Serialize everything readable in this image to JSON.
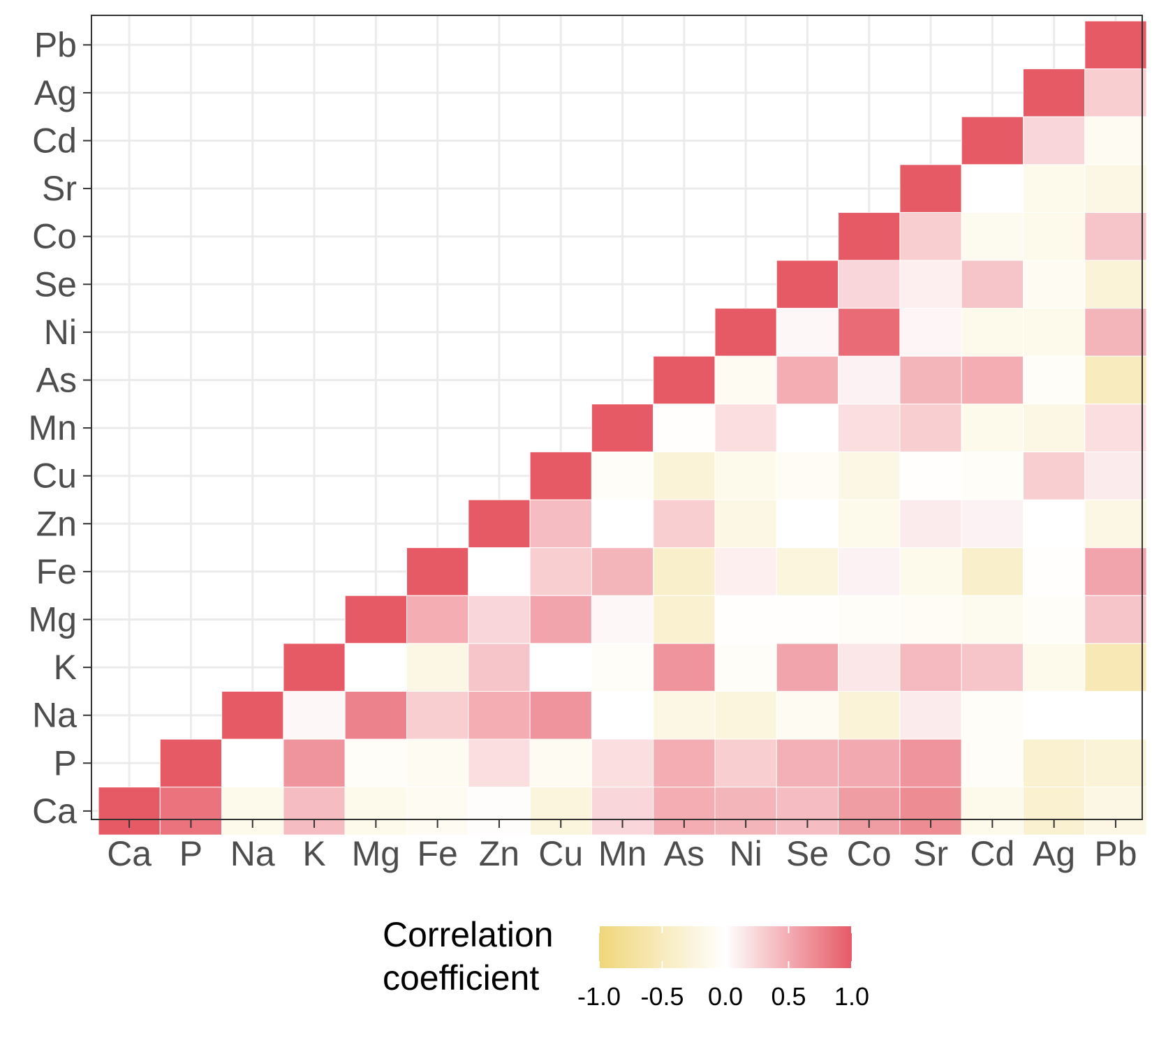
{
  "chart_data": {
    "type": "heatmap",
    "variables": [
      "Ca",
      "P",
      "Na",
      "K",
      "Mg",
      "Fe",
      "Zn",
      "Cu",
      "Mn",
      "As",
      "Ni",
      "Se",
      "Co",
      "Sr",
      "Cd",
      "Ag",
      "Pb"
    ],
    "matrix_lower_triangle": [
      [
        1.0
      ],
      [
        0.85,
        1.0
      ],
      [
        -0.15,
        0.0,
        1.0
      ],
      [
        0.4,
        0.65,
        0.05,
        1.0
      ],
      [
        -0.15,
        -0.05,
        0.75,
        0.0,
        1.0
      ],
      [
        -0.1,
        -0.1,
        0.3,
        -0.2,
        0.5,
        1.0
      ],
      [
        0.02,
        0.2,
        0.5,
        0.35,
        0.25,
        0.0,
        1.0
      ],
      [
        -0.25,
        -0.1,
        0.65,
        0.0,
        0.55,
        0.3,
        0.4,
        1.0
      ],
      [
        0.25,
        0.2,
        0.0,
        -0.05,
        0.05,
        0.45,
        0.0,
        -0.05,
        1.0
      ],
      [
        0.5,
        0.5,
        -0.2,
        0.65,
        -0.35,
        -0.4,
        0.3,
        -0.3,
        -0.02,
        1.0
      ],
      [
        0.45,
        0.3,
        -0.25,
        -0.05,
        -0.02,
        0.1,
        -0.2,
        -0.15,
        0.2,
        -0.1,
        1.0
      ],
      [
        0.4,
        0.48,
        -0.1,
        0.55,
        -0.02,
        -0.25,
        0.0,
        -0.08,
        0.0,
        0.5,
        0.05,
        1.0
      ],
      [
        0.6,
        0.52,
        -0.3,
        0.15,
        -0.05,
        0.08,
        -0.15,
        -0.2,
        0.2,
        0.08,
        0.9,
        0.25,
        1.0
      ],
      [
        0.7,
        0.65,
        0.12,
        0.42,
        -0.08,
        -0.15,
        0.12,
        -0.02,
        0.3,
        0.45,
        0.06,
        0.1,
        0.3,
        1.0
      ],
      [
        -0.15,
        -0.05,
        -0.05,
        0.35,
        -0.12,
        -0.4,
        0.08,
        -0.05,
        -0.15,
        0.5,
        -0.15,
        0.35,
        -0.12,
        0.0,
        1.0
      ],
      [
        -0.35,
        -0.35,
        0.0,
        -0.15,
        -0.05,
        -0.02,
        0.0,
        0.3,
        -0.2,
        -0.05,
        -0.15,
        -0.1,
        -0.15,
        -0.15,
        0.25,
        1.0
      ],
      [
        -0.2,
        -0.3,
        0.0,
        -0.55,
        0.35,
        0.55,
        -0.2,
        0.12,
        0.2,
        -0.5,
        0.45,
        -0.3,
        0.35,
        -0.2,
        -0.1,
        0.3,
        1.0
      ]
    ],
    "legend": {
      "title_line1": "Correlation",
      "title_line2": "coefficient",
      "ticks": [
        "-1.0",
        "-0.5",
        "0.0",
        "0.5",
        "1.0"
      ],
      "tick_values": [
        -1.0,
        -0.5,
        0.0,
        0.5,
        1.0
      ],
      "position": "bottom"
    },
    "range": [
      -1.0,
      1.0
    ],
    "colors": {
      "low": "#f0d67a",
      "mid": "#ffffff",
      "high": "#e65a66"
    },
    "grid": true
  }
}
